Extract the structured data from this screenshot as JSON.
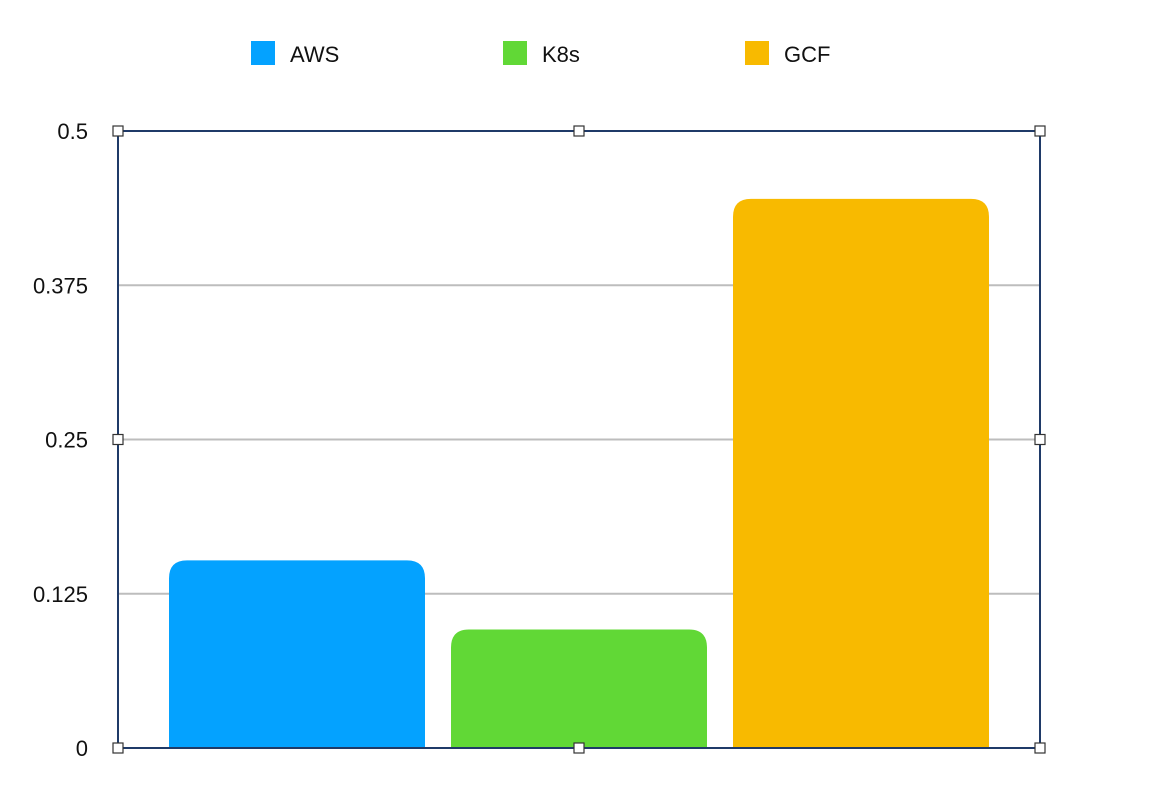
{
  "chart_data": {
    "type": "bar",
    "title": "",
    "xlabel": "",
    "ylabel": "",
    "ylim": [
      0,
      0.5
    ],
    "yticks": [
      0,
      0.125,
      0.25,
      0.375,
      0.5
    ],
    "ytick_labels": [
      "0",
      "0.125",
      "0.25",
      "0.375",
      "0.5"
    ],
    "grid": true,
    "legend_position": "top",
    "series": [
      {
        "name": "AWS",
        "value": 0.152,
        "color": "#04A2FF"
      },
      {
        "name": "K8s",
        "value": 0.096,
        "color": "#61D836"
      },
      {
        "name": "GCF",
        "value": 0.445,
        "color": "#F8BA00"
      }
    ],
    "plot_frame_color": "#1F3A68",
    "grid_color": "#BDBDBD"
  }
}
